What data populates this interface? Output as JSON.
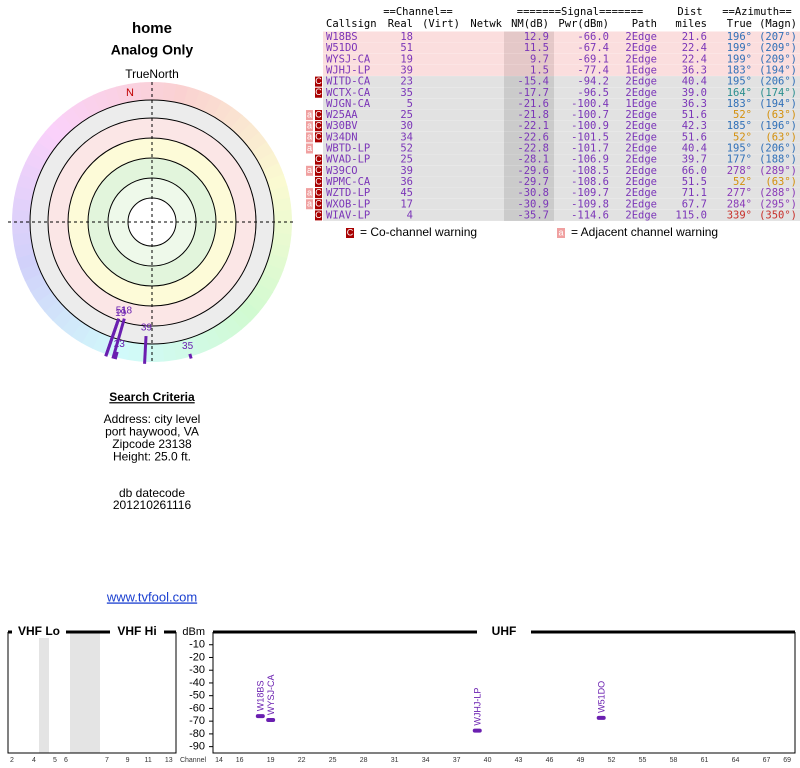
{
  "header": {
    "title": "home",
    "subtitle": "Analog Only",
    "north_label": "TrueNorth",
    "north_marker": "N"
  },
  "table": {
    "group_headers": {
      "channel": "==Channel==",
      "signal": "=======Signal=======",
      "dist": "Dist",
      "azimuth": "==Azimuth=="
    },
    "columns": [
      "Callsign",
      "Real",
      "(Virt)",
      "Netwk",
      "NM(dB)",
      "Pwr(dBm)",
      "Path",
      "miles",
      "True",
      "(Magn)"
    ],
    "rows": [
      {
        "callsign": "W18BS",
        "real": "18",
        "nm": "12.9",
        "pwr": "-66.0",
        "path": "2Edge",
        "dist": "21.6",
        "true": "196°",
        "magn": "(207°)",
        "az_color": "#3070b8"
      },
      {
        "callsign": "W51DO",
        "real": "51",
        "nm": "11.5",
        "pwr": "-67.4",
        "path": "2Edge",
        "dist": "22.4",
        "true": "199°",
        "magn": "(209°)",
        "az_color": "#3070b8"
      },
      {
        "callsign": "WYSJ-CA",
        "real": "19",
        "nm": "9.7",
        "pwr": "-69.1",
        "path": "2Edge",
        "dist": "22.4",
        "true": "199°",
        "magn": "(209°)",
        "az_color": "#3070b8"
      },
      {
        "callsign": "WJHJ-LP",
        "real": "39",
        "nm": "1.5",
        "pwr": "-77.4",
        "path": "1Edge",
        "dist": "36.3",
        "true": "183°",
        "magn": "(194°)",
        "az_color": "#3070b8"
      },
      {
        "callsign": "WITD-CA",
        "real": "23",
        "nm": "-15.4",
        "pwr": "-94.2",
        "path": "2Edge",
        "dist": "40.4",
        "true": "195°",
        "magn": "(206°)",
        "az_color": "#3070b8",
        "flags": [
          "C"
        ]
      },
      {
        "callsign": "WCTX-CA",
        "real": "35",
        "nm": "-17.7",
        "pwr": "-96.5",
        "path": "2Edge",
        "dist": "39.0",
        "true": "164°",
        "magn": "(174°)",
        "az_color": "#2a8f8f",
        "flags": [
          "C"
        ]
      },
      {
        "callsign": "WJGN-CA",
        "real": "5",
        "nm": "-21.6",
        "pwr": "-100.4",
        "path": "1Edge",
        "dist": "36.3",
        "true": "183°",
        "magn": "(194°)",
        "az_color": "#3070b8"
      },
      {
        "callsign": "W25AA",
        "real": "25",
        "nm": "-21.8",
        "pwr": "-100.7",
        "path": "2Edge",
        "dist": "51.6",
        "true": "52°",
        "magn": "(63°)",
        "az_color": "#d4900c",
        "flags": [
          "a",
          "C"
        ]
      },
      {
        "callsign": "W30BV",
        "real": "30",
        "nm": "-22.1",
        "pwr": "-100.9",
        "path": "2Edge",
        "dist": "42.3",
        "true": "185°",
        "magn": "(196°)",
        "az_color": "#3070b8",
        "flags": [
          "a",
          "C"
        ]
      },
      {
        "callsign": "W34DN",
        "real": "34",
        "nm": "-22.6",
        "pwr": "-101.5",
        "path": "2Edge",
        "dist": "51.6",
        "true": "52°",
        "magn": "(63°)",
        "az_color": "#d4900c",
        "flags": [
          "a",
          "C"
        ]
      },
      {
        "callsign": "WBTD-LP",
        "real": "52",
        "nm": "-22.8",
        "pwr": "-101.7",
        "path": "2Edge",
        "dist": "40.4",
        "true": "195°",
        "magn": "(206°)",
        "az_color": "#3070b8",
        "flags": [
          "a"
        ]
      },
      {
        "callsign": "WVAD-LP",
        "real": "25",
        "nm": "-28.1",
        "pwr": "-106.9",
        "path": "2Edge",
        "dist": "39.7",
        "true": "177°",
        "magn": "(188°)",
        "az_color": "#3070b8",
        "flags": [
          "C"
        ]
      },
      {
        "callsign": "W39CO",
        "real": "39",
        "nm": "-29.6",
        "pwr": "-108.5",
        "path": "2Edge",
        "dist": "66.0",
        "true": "278°",
        "magn": "(289°)",
        "az_color": "#8a3ab8",
        "flags": [
          "a",
          "C"
        ]
      },
      {
        "callsign": "WPMC-CA",
        "real": "36",
        "nm": "-29.7",
        "pwr": "-108.6",
        "path": "2Edge",
        "dist": "51.5",
        "true": "52°",
        "magn": "(63°)",
        "az_color": "#d4900c",
        "flags": [
          "C"
        ]
      },
      {
        "callsign": "WZTD-LP",
        "real": "45",
        "nm": "-30.8",
        "pwr": "-109.7",
        "path": "2Edge",
        "dist": "71.1",
        "true": "277°",
        "magn": "(288°)",
        "az_color": "#8a3ab8",
        "flags": [
          "a",
          "C"
        ]
      },
      {
        "callsign": "WXOB-LP",
        "real": "17",
        "nm": "-30.9",
        "pwr": "-109.8",
        "path": "2Edge",
        "dist": "67.7",
        "true": "284°",
        "magn": "(295°)",
        "az_color": "#8a3ab8",
        "flags": [
          "a",
          "C"
        ]
      },
      {
        "callsign": "WIAV-LP",
        "real": "4",
        "nm": "-35.7",
        "pwr": "-114.6",
        "path": "2Edge",
        "dist": "115.0",
        "true": "339°",
        "magn": "(350°)",
        "az_color": "#c8302a",
        "flags": [
          "C"
        ]
      }
    ]
  },
  "legend": {
    "co_flag": "C",
    "co_text": "= Co-channel warning",
    "adj_flag": "a",
    "adj_text": "= Adjacent channel warning"
  },
  "criteria": {
    "title": "Search Criteria",
    "lines": [
      "Address: city level",
      "port haywood, VA",
      "Zipcode 23138",
      "Height: 25.0 ft."
    ],
    "db_label": "db datecode",
    "db_code": "201210261116",
    "link": "www.tvfool.com"
  },
  "spectrum": {
    "bands": [
      "VHF Lo",
      "VHF Hi",
      "UHF"
    ],
    "y_label": "dBm",
    "ylim": [
      0,
      -95
    ],
    "yticks": [
      -10,
      -20,
      -30,
      -40,
      -50,
      -60,
      -70,
      -80,
      -90
    ],
    "x_label": "Channel",
    "vhf_ticks": [
      2,
      4,
      5,
      6,
      7,
      9,
      11,
      13
    ],
    "uhf_ticks": [
      14,
      16,
      19,
      22,
      25,
      28,
      31,
      34,
      37,
      40,
      43,
      46,
      49,
      52,
      55,
      58,
      61,
      64,
      67,
      69
    ]
  }
}
